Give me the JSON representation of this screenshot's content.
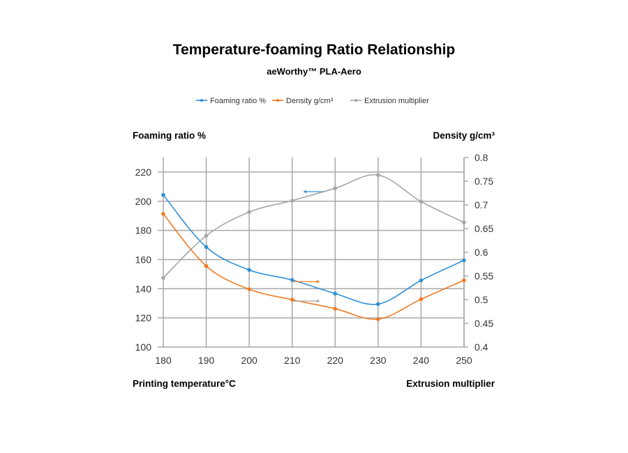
{
  "chart_data": {
    "type": "line",
    "title": "Temperature-foaming Ratio Relationship",
    "subtitle": "aeWorthy™ PLA-Aero",
    "xlabel": "Printing temperature°C",
    "ylabel_left": "Foaming ratio %",
    "ylabel_right": "Density g/cm³",
    "secondary_label": "Extrusion multiplier",
    "x": [
      180,
      190,
      200,
      210,
      220,
      230,
      240,
      250
    ],
    "xlim": [
      180,
      250
    ],
    "ylim_left": [
      100,
      230
    ],
    "ylim_right": [
      0.4,
      0.8
    ],
    "left_ticks": [
      "100",
      "120",
      "140",
      "160",
      "180",
      "200",
      "220"
    ],
    "right_ticks": [
      "0.4",
      "0.45",
      "0.5",
      "0.55",
      "0.6",
      "0.65",
      "0.7",
      "0.75",
      "0.8"
    ],
    "x_ticks": [
      "180",
      "190",
      "200",
      "210",
      "220",
      "230",
      "240",
      "250"
    ],
    "grid": true,
    "legend_position": "top-center",
    "series": [
      {
        "name": "Foaming ratio %",
        "axis": "left",
        "color": "#2f8fd8",
        "values": [
          204.3,
          168.6,
          152.9,
          146,
          136.7,
          129.5,
          145.7,
          159.5
        ]
      },
      {
        "name": "Density g/cm³",
        "axis": "right",
        "color": "#f07a22",
        "values": [
          0.681,
          0.571,
          0.522,
          0.5,
          0.481,
          0.459,
          0.501,
          0.541
        ]
      },
      {
        "name": "Extrusion multiplier",
        "axis": "right",
        "color": "#a6a6a6",
        "values": [
          0.546,
          0.635,
          0.685,
          0.709,
          0.735,
          0.763,
          0.707,
          0.663
        ]
      }
    ]
  }
}
